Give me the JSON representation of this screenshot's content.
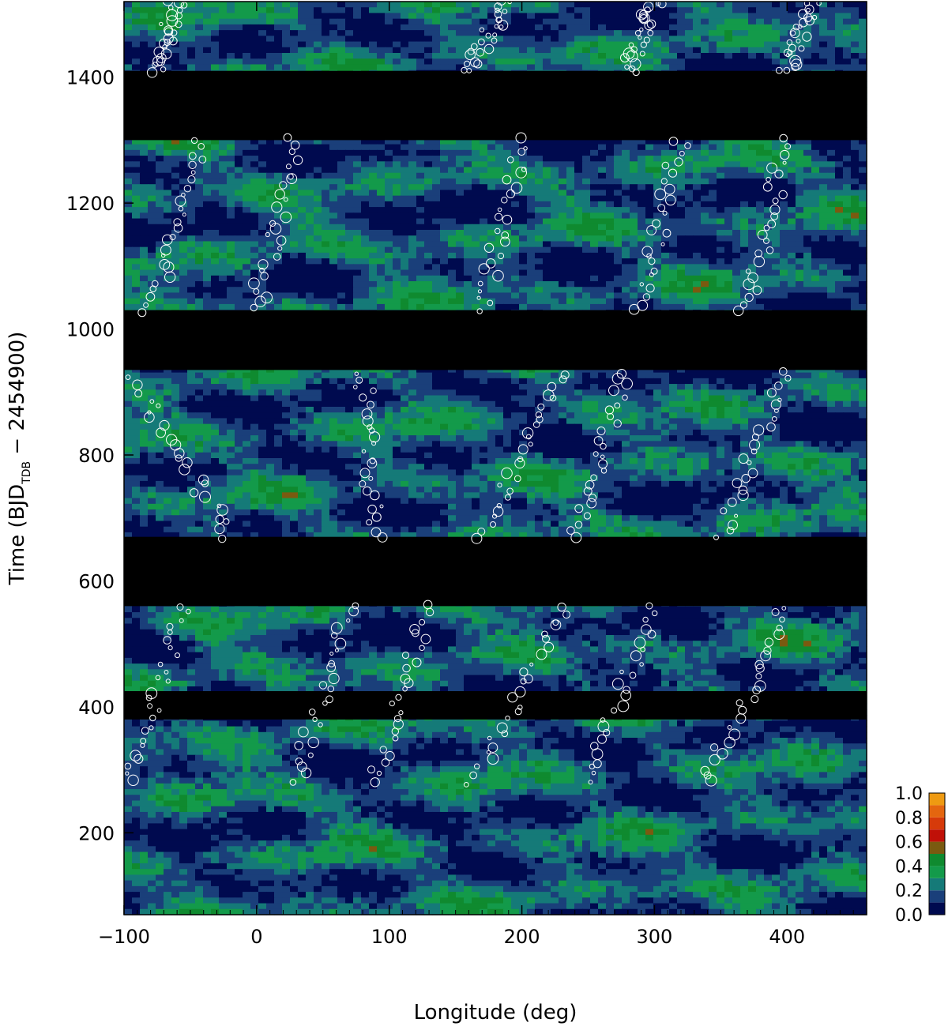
{
  "chart_data": {
    "type": "heatmap",
    "title": "",
    "xlabel": "Longitude (deg)",
    "ylabel_parts": {
      "main": "Time (BJD",
      "sub": "TDB",
      "tail": " − 2454900)"
    },
    "xlim": [
      -100,
      460
    ],
    "ylim": [
      70,
      1520
    ],
    "x_ticks": [
      -100,
      0,
      100,
      200,
      300,
      400
    ],
    "x_tick_labels": [
      "−100",
      "0",
      "100",
      "200",
      "300",
      "400"
    ],
    "y_ticks": [
      200,
      400,
      600,
      800,
      1000,
      1200,
      1400
    ],
    "y_tick_labels": [
      "200",
      "400",
      "600",
      "800",
      "1000",
      "1200",
      "1400"
    ],
    "colorbar": {
      "levels": [
        0.0,
        0.1,
        0.2,
        0.3,
        0.4,
        0.5,
        0.6,
        0.7,
        0.8,
        0.9,
        1.0
      ],
      "colors": [
        "#000a4f",
        "#1a3f7a",
        "#157a78",
        "#139a4a",
        "#0f8a2f",
        "#7a5a10",
        "#c01008",
        "#d63a0a",
        "#e4660f",
        "#ee9a12"
      ],
      "tick_labels": [
        "0.0",
        "0.2",
        "0.4",
        "0.6",
        "0.8",
        "1.0"
      ]
    },
    "data_gaps": [
      [
        1300,
        1410
      ],
      [
        935,
        1030
      ],
      [
        670,
        560
      ],
      [
        380,
        425
      ]
    ],
    "overlay": "white open circles marking spot positions, aligned in drifting diagonal tracks"
  }
}
